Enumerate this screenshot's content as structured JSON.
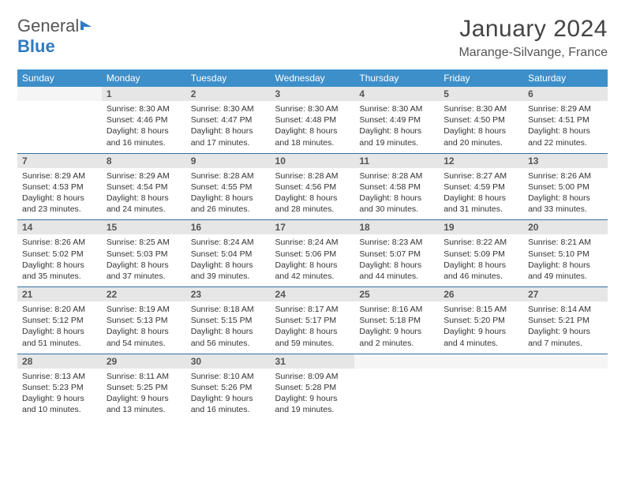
{
  "brand": {
    "name_part1": "General",
    "name_part2": "Blue"
  },
  "title": "January 2024",
  "location": "Marange-Silvange, France",
  "colors": {
    "header_bg": "#3d8fc9",
    "row_divider": "#2f6fa5",
    "daynum_bg": "#e6e6e6",
    "brand_blue": "#2f7bbf"
  },
  "weekdays": [
    "Sunday",
    "Monday",
    "Tuesday",
    "Wednesday",
    "Thursday",
    "Friday",
    "Saturday"
  ],
  "weeks": [
    [
      null,
      {
        "n": "1",
        "sr": "8:30 AM",
        "ss": "4:46 PM",
        "dl": "8 hours and 16 minutes."
      },
      {
        "n": "2",
        "sr": "8:30 AM",
        "ss": "4:47 PM",
        "dl": "8 hours and 17 minutes."
      },
      {
        "n": "3",
        "sr": "8:30 AM",
        "ss": "4:48 PM",
        "dl": "8 hours and 18 minutes."
      },
      {
        "n": "4",
        "sr": "8:30 AM",
        "ss": "4:49 PM",
        "dl": "8 hours and 19 minutes."
      },
      {
        "n": "5",
        "sr": "8:30 AM",
        "ss": "4:50 PM",
        "dl": "8 hours and 20 minutes."
      },
      {
        "n": "6",
        "sr": "8:29 AM",
        "ss": "4:51 PM",
        "dl": "8 hours and 22 minutes."
      }
    ],
    [
      {
        "n": "7",
        "sr": "8:29 AM",
        "ss": "4:53 PM",
        "dl": "8 hours and 23 minutes."
      },
      {
        "n": "8",
        "sr": "8:29 AM",
        "ss": "4:54 PM",
        "dl": "8 hours and 24 minutes."
      },
      {
        "n": "9",
        "sr": "8:28 AM",
        "ss": "4:55 PM",
        "dl": "8 hours and 26 minutes."
      },
      {
        "n": "10",
        "sr": "8:28 AM",
        "ss": "4:56 PM",
        "dl": "8 hours and 28 minutes."
      },
      {
        "n": "11",
        "sr": "8:28 AM",
        "ss": "4:58 PM",
        "dl": "8 hours and 30 minutes."
      },
      {
        "n": "12",
        "sr": "8:27 AM",
        "ss": "4:59 PM",
        "dl": "8 hours and 31 minutes."
      },
      {
        "n": "13",
        "sr": "8:26 AM",
        "ss": "5:00 PM",
        "dl": "8 hours and 33 minutes."
      }
    ],
    [
      {
        "n": "14",
        "sr": "8:26 AM",
        "ss": "5:02 PM",
        "dl": "8 hours and 35 minutes."
      },
      {
        "n": "15",
        "sr": "8:25 AM",
        "ss": "5:03 PM",
        "dl": "8 hours and 37 minutes."
      },
      {
        "n": "16",
        "sr": "8:24 AM",
        "ss": "5:04 PM",
        "dl": "8 hours and 39 minutes."
      },
      {
        "n": "17",
        "sr": "8:24 AM",
        "ss": "5:06 PM",
        "dl": "8 hours and 42 minutes."
      },
      {
        "n": "18",
        "sr": "8:23 AM",
        "ss": "5:07 PM",
        "dl": "8 hours and 44 minutes."
      },
      {
        "n": "19",
        "sr": "8:22 AM",
        "ss": "5:09 PM",
        "dl": "8 hours and 46 minutes."
      },
      {
        "n": "20",
        "sr": "8:21 AM",
        "ss": "5:10 PM",
        "dl": "8 hours and 49 minutes."
      }
    ],
    [
      {
        "n": "21",
        "sr": "8:20 AM",
        "ss": "5:12 PM",
        "dl": "8 hours and 51 minutes."
      },
      {
        "n": "22",
        "sr": "8:19 AM",
        "ss": "5:13 PM",
        "dl": "8 hours and 54 minutes."
      },
      {
        "n": "23",
        "sr": "8:18 AM",
        "ss": "5:15 PM",
        "dl": "8 hours and 56 minutes."
      },
      {
        "n": "24",
        "sr": "8:17 AM",
        "ss": "5:17 PM",
        "dl": "8 hours and 59 minutes."
      },
      {
        "n": "25",
        "sr": "8:16 AM",
        "ss": "5:18 PM",
        "dl": "9 hours and 2 minutes."
      },
      {
        "n": "26",
        "sr": "8:15 AM",
        "ss": "5:20 PM",
        "dl": "9 hours and 4 minutes."
      },
      {
        "n": "27",
        "sr": "8:14 AM",
        "ss": "5:21 PM",
        "dl": "9 hours and 7 minutes."
      }
    ],
    [
      {
        "n": "28",
        "sr": "8:13 AM",
        "ss": "5:23 PM",
        "dl": "9 hours and 10 minutes."
      },
      {
        "n": "29",
        "sr": "8:11 AM",
        "ss": "5:25 PM",
        "dl": "9 hours and 13 minutes."
      },
      {
        "n": "30",
        "sr": "8:10 AM",
        "ss": "5:26 PM",
        "dl": "9 hours and 16 minutes."
      },
      {
        "n": "31",
        "sr": "8:09 AM",
        "ss": "5:28 PM",
        "dl": "9 hours and 19 minutes."
      },
      null,
      null,
      null
    ]
  ],
  "labels": {
    "sunrise": "Sunrise:",
    "sunset": "Sunset:",
    "daylight": "Daylight:"
  }
}
